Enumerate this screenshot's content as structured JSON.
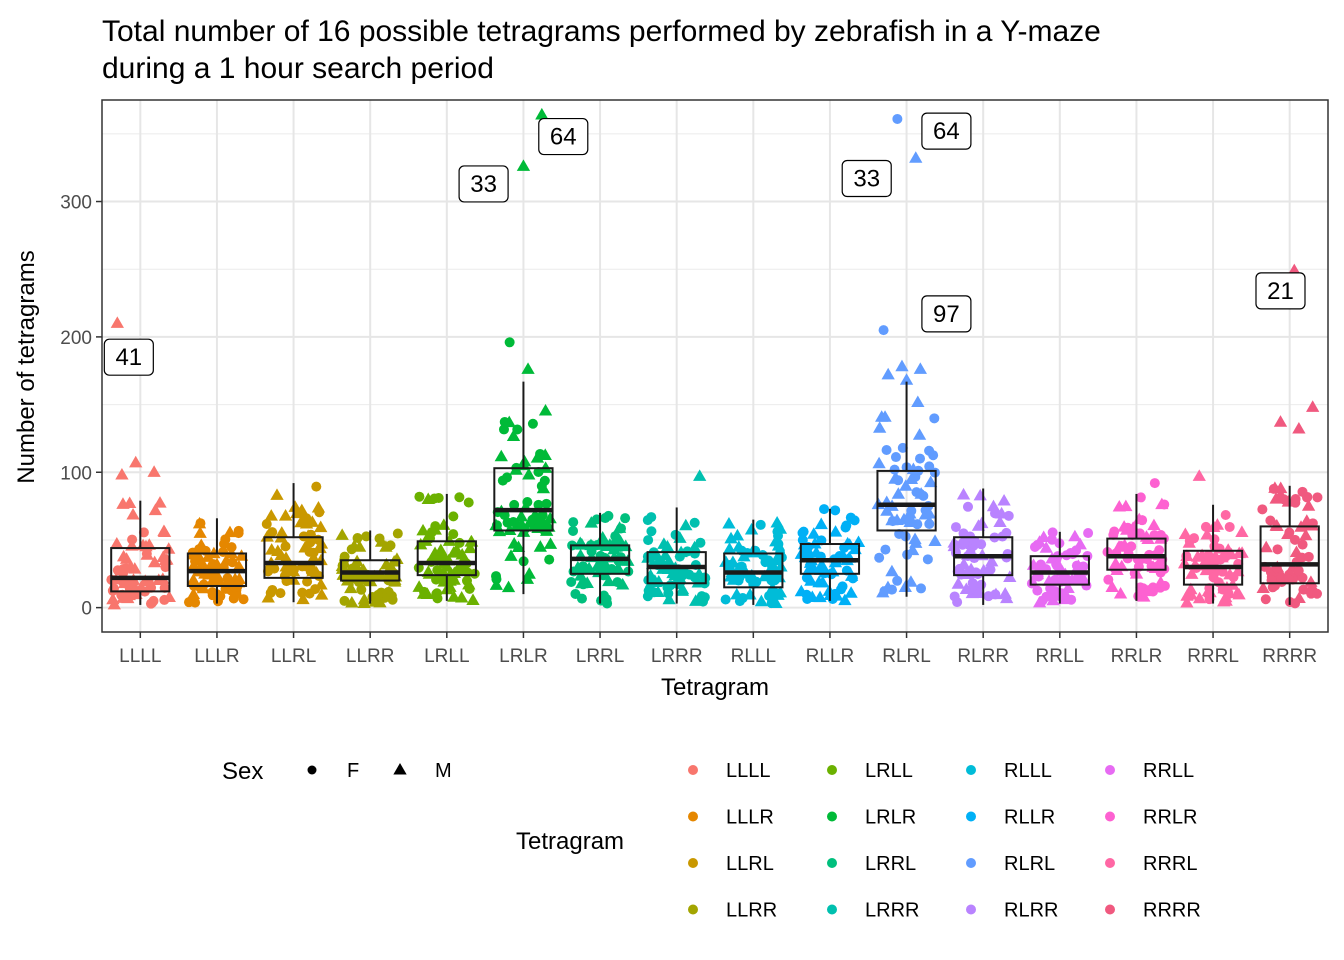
{
  "chart_data": {
    "type": "boxplot-jitter",
    "title_lines": [
      "Total number of 16 possible tetragrams performed by zebrafish in a Y-maze",
      "during a 1 hour search period"
    ],
    "xlabel": "Tetragram",
    "ylabel": "Number of tetragrams",
    "ylim": [
      -18,
      375
    ],
    "yticks": [
      0,
      100,
      200,
      300
    ],
    "grid": true,
    "legend_position": "bottom",
    "categories": [
      "LLLL",
      "LLLR",
      "LLRL",
      "LLRR",
      "LRLL",
      "LRLR",
      "LRRL",
      "LRRR",
      "RLLL",
      "RLLR",
      "RLRL",
      "RLRR",
      "RRLL",
      "RRLR",
      "RRRL",
      "RRRR"
    ],
    "colors": [
      "#F8766D",
      "#E58700",
      "#C99800",
      "#A3A500",
      "#6BB100",
      "#00BA38",
      "#00BF7D",
      "#00C0AF",
      "#00BCD8",
      "#00B0F6",
      "#619CFF",
      "#B983FF",
      "#E76BF3",
      "#FD61D1",
      "#FF67A4",
      "#F0597F"
    ],
    "boxes": [
      {
        "q1": 12,
        "median": 22,
        "q3": 44,
        "whisker_low": 2,
        "whisker_high": 79
      },
      {
        "q1": 16,
        "median": 27,
        "q3": 40,
        "whisker_low": 3,
        "whisker_high": 66
      },
      {
        "q1": 22,
        "median": 33,
        "q3": 52,
        "whisker_low": 4,
        "whisker_high": 92
      },
      {
        "q1": 20,
        "median": 26,
        "q3": 35,
        "whisker_low": 3,
        "whisker_high": 57
      },
      {
        "q1": 24,
        "median": 33,
        "q3": 49,
        "whisker_low": 5,
        "whisker_high": 84
      },
      {
        "q1": 57,
        "median": 72,
        "q3": 103,
        "whisker_low": 10,
        "whisker_high": 167
      },
      {
        "q1": 25,
        "median": 36,
        "q3": 46,
        "whisker_low": 3,
        "whisker_high": 70
      },
      {
        "q1": 18,
        "median": 30,
        "q3": 41,
        "whisker_low": 3,
        "whisker_high": 74
      },
      {
        "q1": 15,
        "median": 26,
        "q3": 40,
        "whisker_low": 2,
        "whisker_high": 65
      },
      {
        "q1": 25,
        "median": 35,
        "q3": 47,
        "whisker_low": 5,
        "whisker_high": 73
      },
      {
        "q1": 57,
        "median": 76,
        "q3": 101,
        "whisker_low": 8,
        "whisker_high": 167
      },
      {
        "q1": 24,
        "median": 38,
        "q3": 52,
        "whisker_low": 2,
        "whisker_high": 88
      },
      {
        "q1": 17,
        "median": 26,
        "q3": 38,
        "whisker_low": 3,
        "whisker_high": 56
      },
      {
        "q1": 28,
        "median": 38,
        "q3": 51,
        "whisker_low": 5,
        "whisker_high": 84
      },
      {
        "q1": 17,
        "median": 30,
        "q3": 42,
        "whisker_low": 3,
        "whisker_high": 76
      },
      {
        "q1": 18,
        "median": 32,
        "q3": 60,
        "whisker_low": 2,
        "whisker_high": 90
      }
    ],
    "outliers": [
      {
        "category": "LLLL",
        "value": 210,
        "sex": "M"
      },
      {
        "category": "LLLL",
        "value": 107,
        "sex": "M"
      },
      {
        "category": "LLLL",
        "value": 100,
        "sex": "M"
      },
      {
        "category": "LLLL",
        "value": 98,
        "sex": "M"
      },
      {
        "category": "LRLR",
        "value": 326,
        "sex": "M"
      },
      {
        "category": "LRLR",
        "value": 364,
        "sex": "M"
      },
      {
        "category": "LRLR",
        "value": 196,
        "sex": "F"
      },
      {
        "category": "LRLR",
        "value": 176,
        "sex": "M"
      },
      {
        "category": "LRRR",
        "value": 97,
        "sex": "M"
      },
      {
        "category": "RLRL",
        "value": 361,
        "sex": "F"
      },
      {
        "category": "RLRL",
        "value": 332,
        "sex": "M"
      },
      {
        "category": "RLRL",
        "value": 205,
        "sex": "F"
      },
      {
        "category": "RLRL",
        "value": 178,
        "sex": "M"
      },
      {
        "category": "RLRL",
        "value": 176,
        "sex": "M"
      },
      {
        "category": "RLRL",
        "value": 172,
        "sex": "M"
      },
      {
        "category": "RLRL",
        "value": 168,
        "sex": "M"
      },
      {
        "category": "RRLR",
        "value": 92,
        "sex": "F"
      },
      {
        "category": "RRRL",
        "value": 97,
        "sex": "M"
      },
      {
        "category": "RRRR",
        "value": 249,
        "sex": "M"
      },
      {
        "category": "RRRR",
        "value": 148,
        "sex": "M"
      },
      {
        "category": "RRRR",
        "value": 137,
        "sex": "M"
      },
      {
        "category": "RRRR",
        "value": 132,
        "sex": "M"
      }
    ],
    "points_per_category": 68,
    "annotations": [
      {
        "label": "41",
        "category": "LLLL",
        "value": 185,
        "x_offset": -0.15
      },
      {
        "label": "33",
        "category": "LRLR",
        "value": 313,
        "x_offset": -0.52
      },
      {
        "label": "64",
        "category": "LRLR",
        "value": 348,
        "x_offset": 0.52
      },
      {
        "label": "33",
        "category": "RLRL",
        "value": 317,
        "x_offset": -0.52
      },
      {
        "label": "64",
        "category": "RLRL",
        "value": 352,
        "x_offset": 0.52
      },
      {
        "label": "97",
        "category": "RLRL",
        "value": 217,
        "x_offset": 0.52
      },
      {
        "label": "21",
        "category": "RRRR",
        "value": 234,
        "x_offset": -0.12
      }
    ],
    "legend_sex": {
      "title": "Sex",
      "items": [
        {
          "label": "F",
          "shape": "circle"
        },
        {
          "label": "M",
          "shape": "triangle"
        }
      ]
    },
    "legend_tetragram": {
      "title": "Tetragram",
      "columns": 4
    }
  }
}
